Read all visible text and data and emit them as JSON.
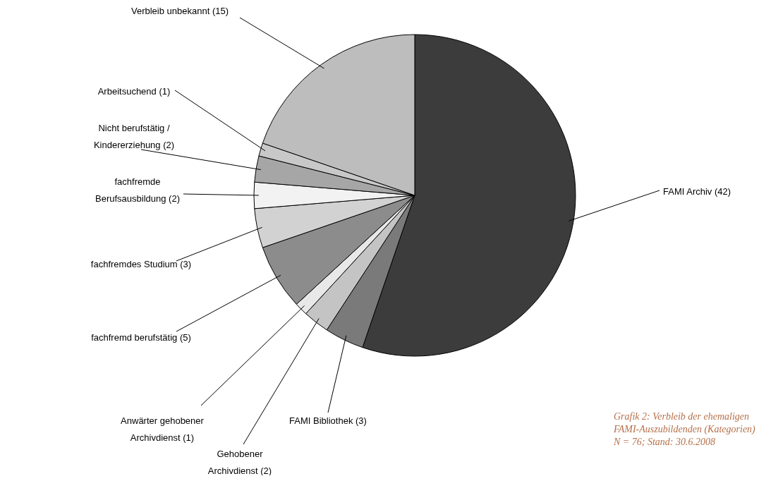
{
  "chart_data": {
    "type": "pie",
    "categories": [
      "FAMI Archiv (42)",
      "FAMI Bibliothek (3)",
      "Gehobener\nArchivdienst (2)",
      "Anwärter gehobener\nArchivdienst (1)",
      "fachfremd berufstätig (5)",
      "fachfremdes Studium (3)",
      "fachfremde\nBerufsausbildung (2)",
      "Nicht berufstätig /\nKindererziehung (2)",
      "Arbeitsuchend (1)",
      "Verbleib unbekannt (15)"
    ],
    "values": [
      42,
      3,
      2,
      1,
      5,
      3,
      2,
      2,
      1,
      15
    ],
    "colors": [
      "#3c3c3c",
      "#7a7a7a",
      "#c4c4c4",
      "#e8e8e8",
      "#8c8c8c",
      "#d2d2d2",
      "#f2f2f2",
      "#a6a6a6",
      "#c8c8c8",
      "#bdbdbd"
    ],
    "legend": false,
    "annotations": [
      "Grafik 2: Verbleib der ehemaligen",
      "FAMI-Auszubildenden (Kategorien)",
      "N = 76; Stand: 30.6.2008"
    ]
  }
}
